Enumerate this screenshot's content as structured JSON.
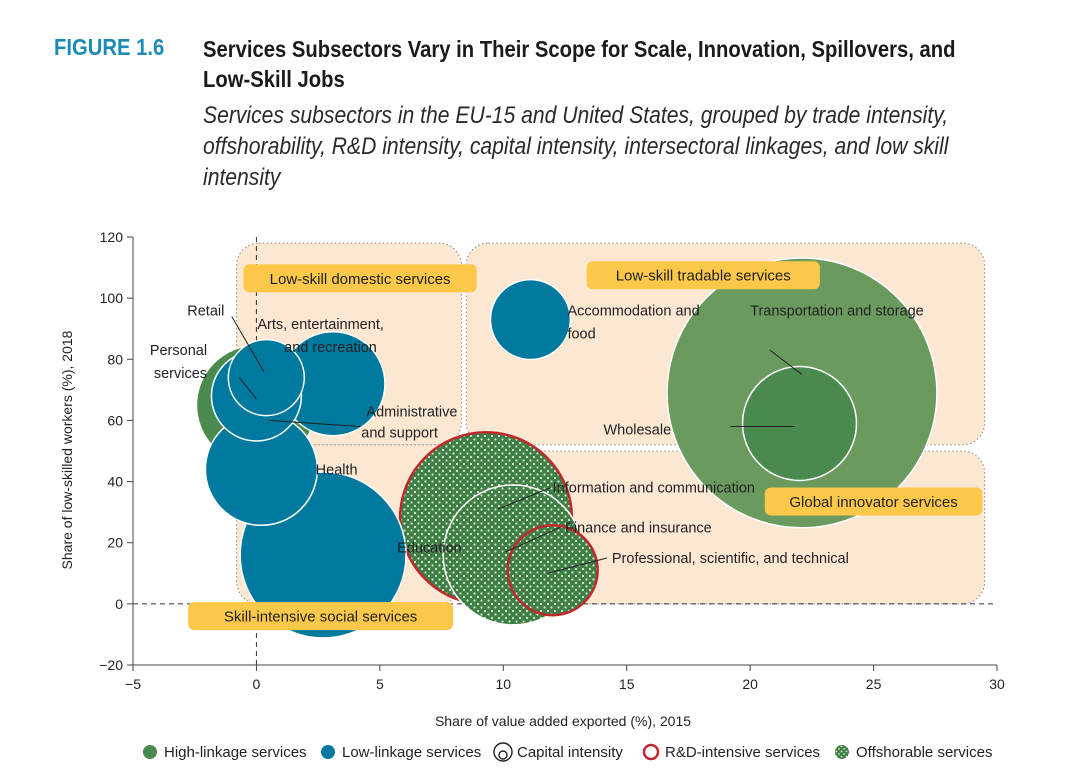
{
  "figure_label": "FIGURE 1.6",
  "figure_title": "Services Subsectors Vary in Their Scope for Scale, Innovation, Spillovers, and Low-Skill Jobs",
  "figure_subtitle": "Services subsectors in the EU-15 and United States, grouped by trade intensity, offshorability, R&D intensity, capital intensity, intersectoral linkages, and low skill intensity",
  "colors": {
    "high_linkage": "#4a8a4f",
    "low_linkage": "#00799e",
    "capital_large": "#6b9a5e",
    "rd_outline": "#c0282d",
    "region_fill": "#fce8d2",
    "tag_fill": "#fbc84a"
  },
  "chart_data": {
    "type": "scatter",
    "xlabel": "Share of value added exported (%), 2015",
    "ylabel": "Share of low-skilled workers (%), 2018",
    "xlim": [
      -5,
      30
    ],
    "ylim": [
      -20,
      120
    ],
    "xticks": [
      -5,
      0,
      5,
      10,
      15,
      20,
      25,
      30
    ],
    "yticks": [
      -20,
      0,
      20,
      40,
      60,
      80,
      100,
      120
    ],
    "xtick_labels": [
      "−5",
      "0",
      "5",
      "10",
      "15",
      "20",
      "25",
      "30"
    ],
    "ytick_labels": [
      "−20",
      "0",
      "20",
      "40",
      "60",
      "80",
      "100",
      "120"
    ],
    "reference_lines": {
      "x": 0,
      "y": 0
    },
    "regions": [
      {
        "name": "Low-skill domestic services",
        "x": [
          -0.8,
          8.3
        ],
        "y": [
          52,
          118
        ]
      },
      {
        "name": "Low-skill tradable services",
        "x": [
          8.5,
          29.5
        ],
        "y": [
          52,
          118
        ]
      },
      {
        "name": "Skill-intensive social services",
        "x": [
          -0.8,
          8.3
        ],
        "y": [
          0,
          52
        ]
      },
      {
        "name": "Global innovator services",
        "x": [
          8.5,
          29.5
        ],
        "y": [
          0,
          50
        ]
      }
    ],
    "region_tags": [
      {
        "label": "Low-skill domestic services",
        "x": 4.2,
        "y": 106.5
      },
      {
        "label": "Low-skill tradable services",
        "x": 18.1,
        "y": 107.5
      },
      {
        "label": "Skill-intensive social services",
        "x": 2.6,
        "y": -4
      },
      {
        "label": "Global innovator services",
        "x": 25,
        "y": 33.5
      }
    ],
    "points": [
      {
        "label": "Personal services",
        "x": 0.0,
        "y": 65,
        "capital": 6.0,
        "linkage": "high",
        "rd": false,
        "offshorable": false
      },
      {
        "label": "Retail",
        "x": 0.0,
        "y": 68,
        "capital": 4.5,
        "linkage": "low",
        "rd": false,
        "offshorable": false
      },
      {
        "label": "Arts, entertainment, and recreation",
        "x": 0.4,
        "y": 74,
        "capital": 3.8,
        "linkage": "low",
        "rd": false,
        "offshorable": false
      },
      {
        "label": "Administrative and support",
        "x": 3.1,
        "y": 72,
        "capital": 5.2,
        "linkage": "low",
        "rd": false,
        "offshorable": false
      },
      {
        "label": "Health",
        "x": 0.2,
        "y": 44,
        "capital": 5.6,
        "linkage": "low",
        "rd": false,
        "offshorable": false
      },
      {
        "label": "Education",
        "x": 2.7,
        "y": 16,
        "capital": 8.3,
        "linkage": "low",
        "rd": false,
        "offshorable": false
      },
      {
        "label": "Accommodation and food",
        "x": 11.1,
        "y": 93,
        "capital": 4.0,
        "linkage": "low",
        "rd": false,
        "offshorable": false
      },
      {
        "label": "Transportation and storage",
        "x": 22.1,
        "y": 69,
        "capital": 13.5,
        "linkage": "high",
        "rd": false,
        "offshorable": false
      },
      {
        "label": "Wholesale",
        "x": 22.0,
        "y": 59,
        "capital": 5.7,
        "linkage": "high",
        "rd": false,
        "offshorable": false
      },
      {
        "label": "Information and communication",
        "x": 9.3,
        "y": 28,
        "capital": 8.6,
        "linkage": "high",
        "rd": true,
        "offshorable": true
      },
      {
        "label": "Finance and insurance",
        "x": 10.4,
        "y": 16,
        "capital": 7.0,
        "linkage": "high",
        "rd": false,
        "offshorable": true
      },
      {
        "label": "Professional, scientific, and technical",
        "x": 12.0,
        "y": 11,
        "capital": 4.5,
        "linkage": "high",
        "rd": true,
        "offshorable": true
      }
    ],
    "point_labels": [
      {
        "text": "Retail",
        "x": -1.3,
        "y": 96
      },
      {
        "text": "Personal",
        "x": -2.0,
        "y": 83
      },
      {
        "text": "services",
        "x": -2.0,
        "y": 75.5
      },
      {
        "text": "Arts, entertainment,",
        "x": 2.6,
        "y": 91.5
      },
      {
        "text": "and recreation",
        "x": 3.0,
        "y": 84
      },
      {
        "text": "Administrative",
        "x": 6.3,
        "y": 63
      },
      {
        "text": "and support",
        "x": 5.8,
        "y": 56
      },
      {
        "text": "Health",
        "x": 2.4,
        "y": 44
      },
      {
        "text": "Education",
        "x": 5.7,
        "y": 18.5
      },
      {
        "text": "Accommodation and",
        "x": 12.6,
        "y": 96
      },
      {
        "text": "food",
        "x": 12.6,
        "y": 88.5
      },
      {
        "text": "Transportation and storage",
        "x": 20.0,
        "y": 96
      },
      {
        "text": "Wholesale",
        "x": 16.8,
        "y": 57
      },
      {
        "text": "Information and communication",
        "x": 12.0,
        "y": 38
      },
      {
        "text": "Finance and insurance",
        "x": 12.5,
        "y": 25
      },
      {
        "text": "Professional, scientific, and technical",
        "x": 14.4,
        "y": 15
      }
    ],
    "leaders": [
      {
        "from": [
          -1.0,
          94
        ],
        "to": [
          0.3,
          76
        ]
      },
      {
        "from": [
          -0.7,
          74
        ],
        "to": [
          0.0,
          67
        ]
      },
      {
        "from": [
          4.2,
          58
        ],
        "to": [
          0.5,
          60
        ]
      },
      {
        "from": [
          20.8,
          83
        ],
        "to": [
          22.1,
          75
        ]
      },
      {
        "from": [
          19.2,
          58
        ],
        "to": [
          21.8,
          58
        ]
      },
      {
        "from": [
          11.9,
          38
        ],
        "to": [
          9.8,
          31
        ]
      },
      {
        "from": [
          12.3,
          25
        ],
        "to": [
          10.1,
          17
        ]
      },
      {
        "from": [
          14.2,
          15
        ],
        "to": [
          11.8,
          10
        ]
      }
    ],
    "legend": [
      {
        "label": "High-linkage services",
        "marker": "high"
      },
      {
        "label": "Low-linkage services",
        "marker": "low"
      },
      {
        "label": "Capital intensity",
        "marker": "capital"
      },
      {
        "label": "R&D-intensive services",
        "marker": "rd"
      },
      {
        "label": "Offshorable services",
        "marker": "offshorable"
      }
    ],
    "legend_position": "bottom"
  }
}
